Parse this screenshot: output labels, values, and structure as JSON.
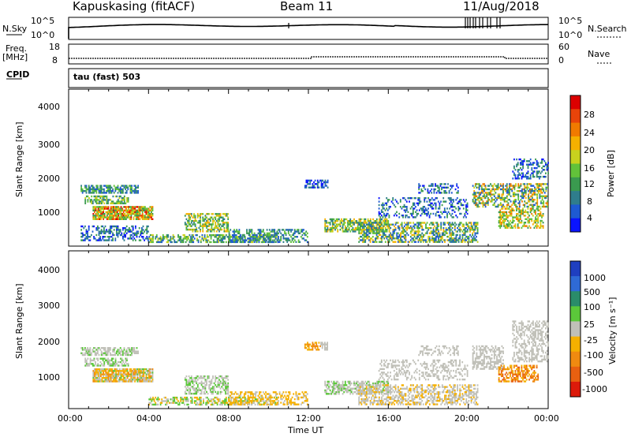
{
  "header": {
    "station": "Kapuskasing (fitACF)",
    "beam": "Beam 11",
    "date": "11/Aug/2018"
  },
  "labels": {
    "n_sky": "N.Sky",
    "n_search": "N.Search",
    "freq": "Freq.",
    "mhz": "[MHz]",
    "nave": "Nave",
    "cpid": "CPID",
    "cpid_value": "tau (fast) 503",
    "time_axis": "Time UT"
  },
  "chart_data": [
    {
      "type": "line",
      "name": "noise-panel",
      "left_ticks": [
        "10^5",
        "10^0"
      ],
      "right_ticks": [
        "10^5",
        "10^0"
      ],
      "left_label": "N.Sky",
      "right_label": "N.Search",
      "x": [
        "00:00",
        "04:00",
        "08:00",
        "12:00",
        "16:00",
        "20:00",
        "00:00"
      ]
    },
    {
      "type": "line",
      "name": "freq-panel",
      "left_ticks": [
        "18",
        "8"
      ],
      "right_ticks": [
        "60",
        "0"
      ],
      "left_label": "Freq. [MHz]",
      "right_label": "Nave"
    },
    {
      "type": "heatmap",
      "name": "power-panel",
      "xlabel": "",
      "ylabel": "Slant Range [km]",
      "y_ticks": [
        "1000",
        "2000",
        "3000",
        "4000"
      ],
      "colorbar": {
        "label": "Power [dB]",
        "ticks": [
          "4",
          "8",
          "12",
          "16",
          "20",
          "24",
          "28"
        ],
        "colors": [
          "#0a14ff",
          "#1e5ad2",
          "#2f7d8c",
          "#3a9a4f",
          "#62c23a",
          "#c8d21e",
          "#f5b000",
          "#f07a00",
          "#e8440a",
          "#dc0000"
        ]
      }
    },
    {
      "type": "heatmap",
      "name": "velocity-panel",
      "xlabel": "Time UT",
      "ylabel": "Slant Range [km]",
      "y_ticks": [
        "1000",
        "2000",
        "3000",
        "4000"
      ],
      "x_ticks": [
        "00:00",
        "04:00",
        "08:00",
        "12:00",
        "16:00",
        "20:00",
        "00:00"
      ],
      "colorbar": {
        "label": "Velocity [m s⁻¹]",
        "ticks": [
          "1000",
          "500",
          "100",
          "25",
          "-25",
          "-100",
          "-500",
          "-1000"
        ],
        "colors": [
          "#1f3fc0",
          "#2f6ad6",
          "#2a8c6a",
          "#5bc83a",
          "#c0c0b8",
          "#f5b000",
          "#f08a10",
          "#e86010",
          "#dc1a0a"
        ]
      }
    }
  ]
}
